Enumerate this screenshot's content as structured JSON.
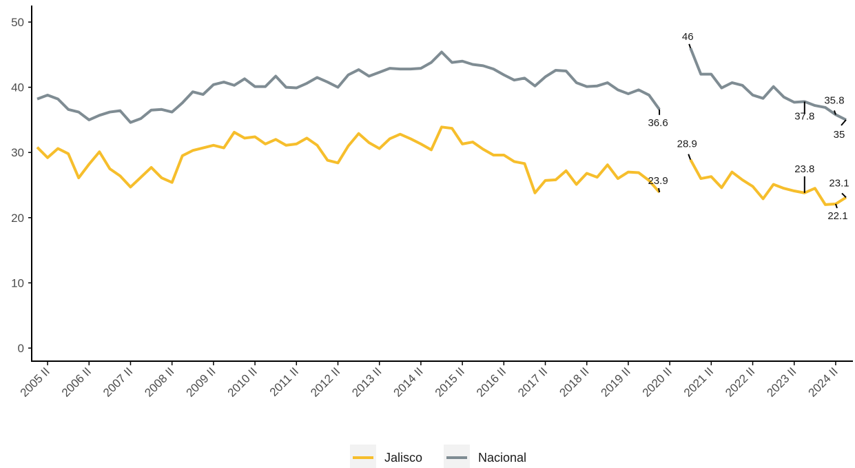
{
  "chart_data": {
    "type": "line",
    "title": "",
    "xlabel": "",
    "ylabel": "",
    "ylim": [
      0,
      50
    ],
    "yticks": [
      0,
      10,
      20,
      30,
      40,
      50
    ],
    "x_start": "2005 I",
    "x_tick_labels": [
      "2005 II",
      "2006 II",
      "2007 II",
      "2008 II",
      "2009 II",
      "2010 II",
      "2011 II",
      "2012 II",
      "2013 II",
      "2014 II",
      "2015 II",
      "2016 II",
      "2017 II",
      "2018 II",
      "2019 II",
      "2020 II",
      "2021 II",
      "2022 II",
      "2023 II",
      "2024 II"
    ],
    "grid": false,
    "legend_position": "bottom",
    "series": [
      {
        "name": "Jalisco",
        "color": "#F6BE2C",
        "values": [
          30.8,
          29.2,
          30.6,
          29.8,
          26.1,
          28.2,
          30.1,
          27.5,
          26.4,
          24.7,
          26.2,
          27.7,
          26.1,
          25.4,
          29.5,
          30.3,
          30.7,
          31.1,
          30.7,
          33.1,
          32.2,
          32.4,
          31.3,
          32.0,
          31.1,
          31.3,
          32.2,
          31.1,
          28.8,
          28.4,
          31.0,
          32.9,
          31.5,
          30.6,
          32.1,
          32.8,
          32.1,
          31.3,
          30.4,
          33.9,
          33.7,
          31.3,
          31.6,
          30.5,
          29.6,
          29.6,
          28.6,
          28.3,
          23.8,
          25.7,
          25.8,
          27.2,
          25.1,
          26.8,
          26.2,
          28.1,
          26.0,
          27.0,
          26.9,
          25.7,
          23.9,
          null,
          null,
          28.9,
          26.0,
          26.3,
          24.6,
          27.0,
          25.8,
          24.8,
          22.9,
          25.1,
          24.5,
          24.1,
          23.8,
          24.5,
          22.0,
          22.1,
          23.1
        ]
      },
      {
        "name": "Nacional",
        "color": "#7F8C93",
        "values": [
          38.2,
          38.8,
          38.2,
          36.6,
          36.2,
          35.0,
          35.7,
          36.2,
          36.4,
          34.6,
          35.2,
          36.5,
          36.6,
          36.2,
          37.6,
          39.3,
          38.9,
          40.4,
          40.8,
          40.3,
          41.3,
          40.1,
          40.1,
          41.7,
          40.0,
          39.9,
          40.6,
          41.5,
          40.8,
          40.0,
          41.9,
          42.7,
          41.7,
          42.3,
          42.9,
          42.8,
          42.8,
          42.9,
          43.8,
          45.4,
          43.8,
          44.0,
          43.5,
          43.3,
          42.8,
          41.9,
          41.1,
          41.4,
          40.2,
          41.6,
          42.6,
          42.5,
          40.7,
          40.1,
          40.2,
          40.7,
          39.6,
          39.0,
          39.6,
          38.8,
          36.6,
          null,
          null,
          46.0,
          42.0,
          42.0,
          39.9,
          40.7,
          40.3,
          38.8,
          38.3,
          40.1,
          38.5,
          37.7,
          37.8,
          37.2,
          36.9,
          35.8,
          35.0
        ]
      }
    ],
    "annotations": [
      {
        "series": "Jalisco",
        "index": 60,
        "text": "23.9"
      },
      {
        "series": "Jalisco",
        "index": 63,
        "text": "28.9"
      },
      {
        "series": "Jalisco",
        "index": 74,
        "text": "23.8"
      },
      {
        "series": "Jalisco",
        "index": 77,
        "text": "22.1"
      },
      {
        "series": "Jalisco",
        "index": 78,
        "text": "23.1"
      },
      {
        "series": "Nacional",
        "index": 60,
        "text": "36.6"
      },
      {
        "series": "Nacional",
        "index": 63,
        "text": "46"
      },
      {
        "series": "Nacional",
        "index": 74,
        "text": "37.8"
      },
      {
        "series": "Nacional",
        "index": 77,
        "text": "35.8"
      },
      {
        "series": "Nacional",
        "index": 78,
        "text": "35"
      }
    ]
  }
}
